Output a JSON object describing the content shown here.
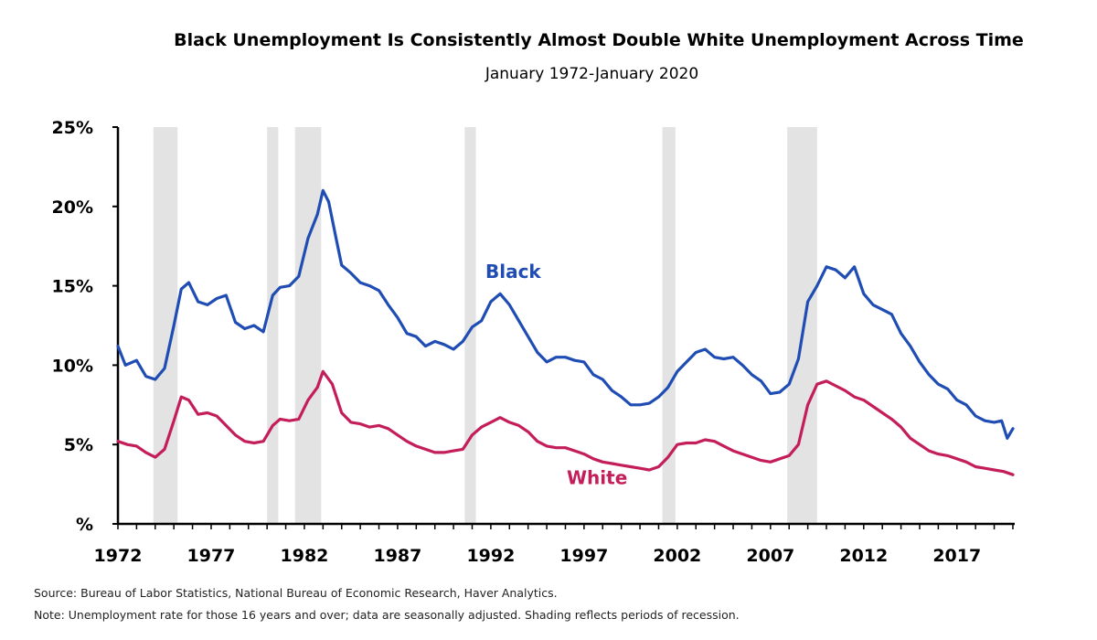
{
  "chart_data": {
    "type": "line",
    "title": "Black Unemployment Is Consistently Almost Double White Unemployment Across Time",
    "subtitle": "January 1972-January 2020",
    "xlabel": "",
    "ylabel": "",
    "x_ticks": [
      "1972",
      "1977",
      "1982",
      "1987",
      "1992",
      "1997",
      "2002",
      "2007",
      "2012",
      "2017"
    ],
    "y_ticks": [
      "%",
      "5%",
      "10%",
      "15%",
      "20%",
      "25%"
    ],
    "xlim": [
      1972.0,
      2020.1
    ],
    "ylim": [
      0,
      25
    ],
    "grid": false,
    "legend": "inline labels",
    "recessions": [
      [
        1973.9,
        1975.2
      ],
      [
        1980.0,
        1980.6
      ],
      [
        1981.5,
        1982.9
      ],
      [
        1990.6,
        1991.2
      ],
      [
        2001.2,
        2001.9
      ],
      [
        2007.9,
        2009.5
      ]
    ],
    "series": [
      {
        "name": "Black",
        "color": "#1f4db4",
        "label_at": [
          1993.2,
          15.5
        ],
        "x": [
          1972.0,
          1972.4,
          1973.0,
          1973.5,
          1974.0,
          1974.5,
          1975.0,
          1975.4,
          1975.8,
          1976.3,
          1976.8,
          1977.3,
          1977.8,
          1978.3,
          1978.8,
          1979.3,
          1979.8,
          1980.3,
          1980.7,
          1981.2,
          1981.7,
          1982.2,
          1982.7,
          1983.0,
          1983.3,
          1983.7,
          1984.0,
          1984.5,
          1985.0,
          1985.5,
          1986.0,
          1986.5,
          1987.0,
          1987.5,
          1988.0,
          1988.5,
          1989.0,
          1989.5,
          1990.0,
          1990.5,
          1991.0,
          1991.5,
          1992.0,
          1992.5,
          1993.0,
          1993.5,
          1994.0,
          1994.5,
          1995.0,
          1995.5,
          1996.0,
          1996.5,
          1997.0,
          1997.5,
          1998.0,
          1998.5,
          1999.0,
          1999.5,
          2000.0,
          2000.5,
          2001.0,
          2001.5,
          2002.0,
          2002.5,
          2003.0,
          2003.5,
          2004.0,
          2004.5,
          2005.0,
          2005.5,
          2006.0,
          2006.5,
          2007.0,
          2007.5,
          2008.0,
          2008.5,
          2009.0,
          2009.5,
          2010.0,
          2010.5,
          2011.0,
          2011.5,
          2012.0,
          2012.5,
          2013.0,
          2013.5,
          2014.0,
          2014.5,
          2015.0,
          2015.5,
          2016.0,
          2016.5,
          2017.0,
          2017.5,
          2018.0,
          2018.5,
          2019.0,
          2019.4,
          2019.7,
          2020.0
        ],
        "values": [
          11.2,
          10.0,
          10.3,
          9.3,
          9.1,
          9.8,
          12.5,
          14.8,
          15.2,
          14.0,
          13.8,
          14.2,
          14.4,
          12.7,
          12.3,
          12.5,
          12.1,
          14.4,
          14.9,
          15.0,
          15.6,
          18.0,
          19.5,
          21.0,
          20.3,
          18.0,
          16.3,
          15.8,
          15.2,
          15.0,
          14.7,
          13.8,
          13.0,
          12.0,
          11.8,
          11.2,
          11.5,
          11.3,
          11.0,
          11.5,
          12.4,
          12.8,
          14.0,
          14.5,
          13.8,
          12.8,
          11.8,
          10.8,
          10.2,
          10.5,
          10.5,
          10.3,
          10.2,
          9.4,
          9.1,
          8.4,
          8.0,
          7.5,
          7.5,
          7.6,
          8.0,
          8.6,
          9.6,
          10.2,
          10.8,
          11.0,
          10.5,
          10.4,
          10.5,
          10.0,
          9.4,
          9.0,
          8.2,
          8.3,
          8.8,
          10.4,
          14.0,
          15.0,
          16.2,
          16.0,
          15.5,
          16.2,
          14.5,
          13.8,
          13.5,
          13.2,
          12.0,
          11.2,
          10.2,
          9.4,
          8.8,
          8.5,
          7.8,
          7.5,
          6.8,
          6.5,
          6.4,
          6.5,
          5.4,
          6.0
        ]
      },
      {
        "name": "White",
        "color": "#c41e5a",
        "label_at": [
          1997.7,
          2.5
        ],
        "x": [
          1972.0,
          1972.5,
          1973.0,
          1973.5,
          1974.0,
          1974.5,
          1975.0,
          1975.4,
          1975.8,
          1976.3,
          1976.8,
          1977.3,
          1977.8,
          1978.3,
          1978.8,
          1979.3,
          1979.8,
          1980.3,
          1980.7,
          1981.2,
          1981.7,
          1982.2,
          1982.7,
          1983.0,
          1983.5,
          1984.0,
          1984.5,
          1985.0,
          1985.5,
          1986.0,
          1986.5,
          1987.0,
          1987.5,
          1988.0,
          1988.5,
          1989.0,
          1989.5,
          1990.0,
          1990.5,
          1991.0,
          1991.5,
          1992.0,
          1992.5,
          1993.0,
          1993.5,
          1994.0,
          1994.5,
          1995.0,
          1995.5,
          1996.0,
          1996.5,
          1997.0,
          1997.5,
          1998.0,
          1998.5,
          1999.0,
          1999.5,
          2000.0,
          2000.5,
          2001.0,
          2001.5,
          2002.0,
          2002.5,
          2003.0,
          2003.5,
          2004.0,
          2004.5,
          2005.0,
          2005.5,
          2006.0,
          2006.5,
          2007.0,
          2007.5,
          2008.0,
          2008.5,
          2009.0,
          2009.5,
          2010.0,
          2010.5,
          2011.0,
          2011.5,
          2012.0,
          2012.5,
          2013.0,
          2013.5,
          2014.0,
          2014.5,
          2015.0,
          2015.5,
          2016.0,
          2016.5,
          2017.0,
          2017.5,
          2018.0,
          2018.5,
          2019.0,
          2019.5,
          2020.0
        ],
        "values": [
          5.2,
          5.0,
          4.9,
          4.5,
          4.2,
          4.7,
          6.5,
          8.0,
          7.8,
          6.9,
          7.0,
          6.8,
          6.2,
          5.6,
          5.2,
          5.1,
          5.2,
          6.2,
          6.6,
          6.5,
          6.6,
          7.8,
          8.6,
          9.6,
          8.8,
          7.0,
          6.4,
          6.3,
          6.1,
          6.2,
          6.0,
          5.6,
          5.2,
          4.9,
          4.7,
          4.5,
          4.5,
          4.6,
          4.7,
          5.6,
          6.1,
          6.4,
          6.7,
          6.4,
          6.2,
          5.8,
          5.2,
          4.9,
          4.8,
          4.8,
          4.6,
          4.4,
          4.1,
          3.9,
          3.8,
          3.7,
          3.6,
          3.5,
          3.4,
          3.6,
          4.2,
          5.0,
          5.1,
          5.1,
          5.3,
          5.2,
          4.9,
          4.6,
          4.4,
          4.2,
          4.0,
          3.9,
          4.1,
          4.3,
          5.0,
          7.5,
          8.8,
          9.0,
          8.7,
          8.4,
          8.0,
          7.8,
          7.4,
          7.0,
          6.6,
          6.1,
          5.4,
          5.0,
          4.6,
          4.4,
          4.3,
          4.1,
          3.9,
          3.6,
          3.5,
          3.4,
          3.3,
          3.1
        ]
      }
    ]
  },
  "footer": {
    "source": "Source: Bureau of Labor Statistics, National Bureau of Economic Research, Haver Analytics.",
    "note": "Note: Unemployment rate for those 16 years and over; data are seasonally adjusted. Shading reflects periods of recession."
  }
}
